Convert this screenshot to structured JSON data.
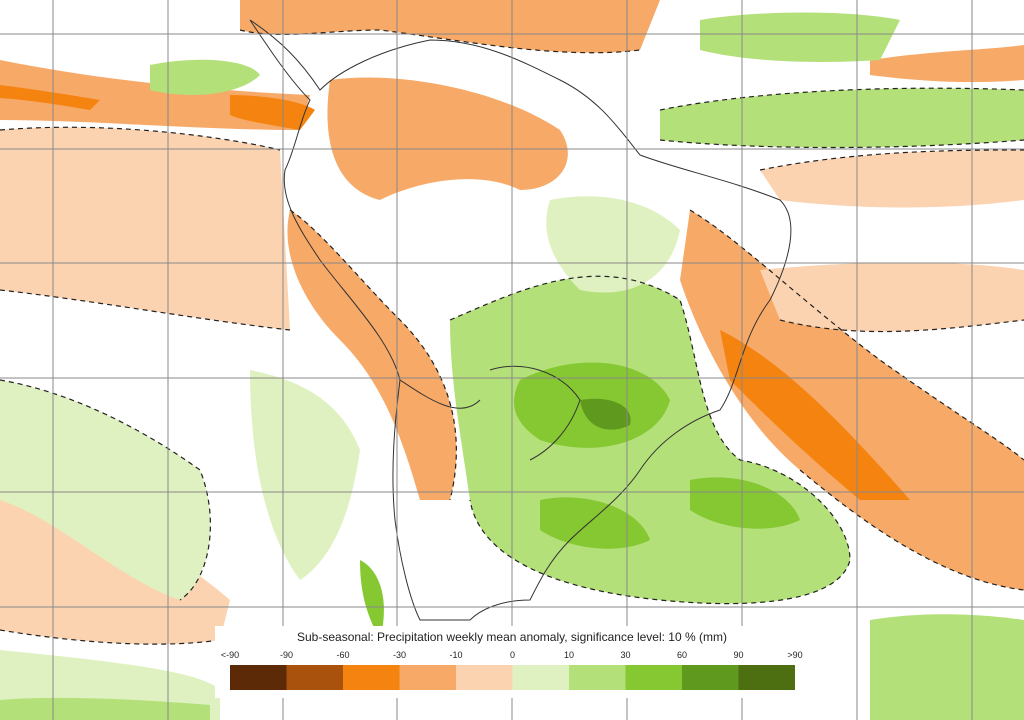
{
  "legend": {
    "title": "Sub-seasonal: Precipitation weekly mean anomaly, significance level: 10 % (mm)",
    "ticks": [
      "<-90",
      "-90",
      "-60",
      "-30",
      "-10",
      "0",
      "10",
      "30",
      "60",
      "90",
      ">90"
    ],
    "colors": [
      "#5c2a07",
      "#a8520e",
      "#f5830f",
      "#f7a968",
      "#fbd3b0",
      "#dff1c0",
      "#b4e07a",
      "#86c832",
      "#5f9a1e",
      "#4e6e12"
    ]
  }
}
